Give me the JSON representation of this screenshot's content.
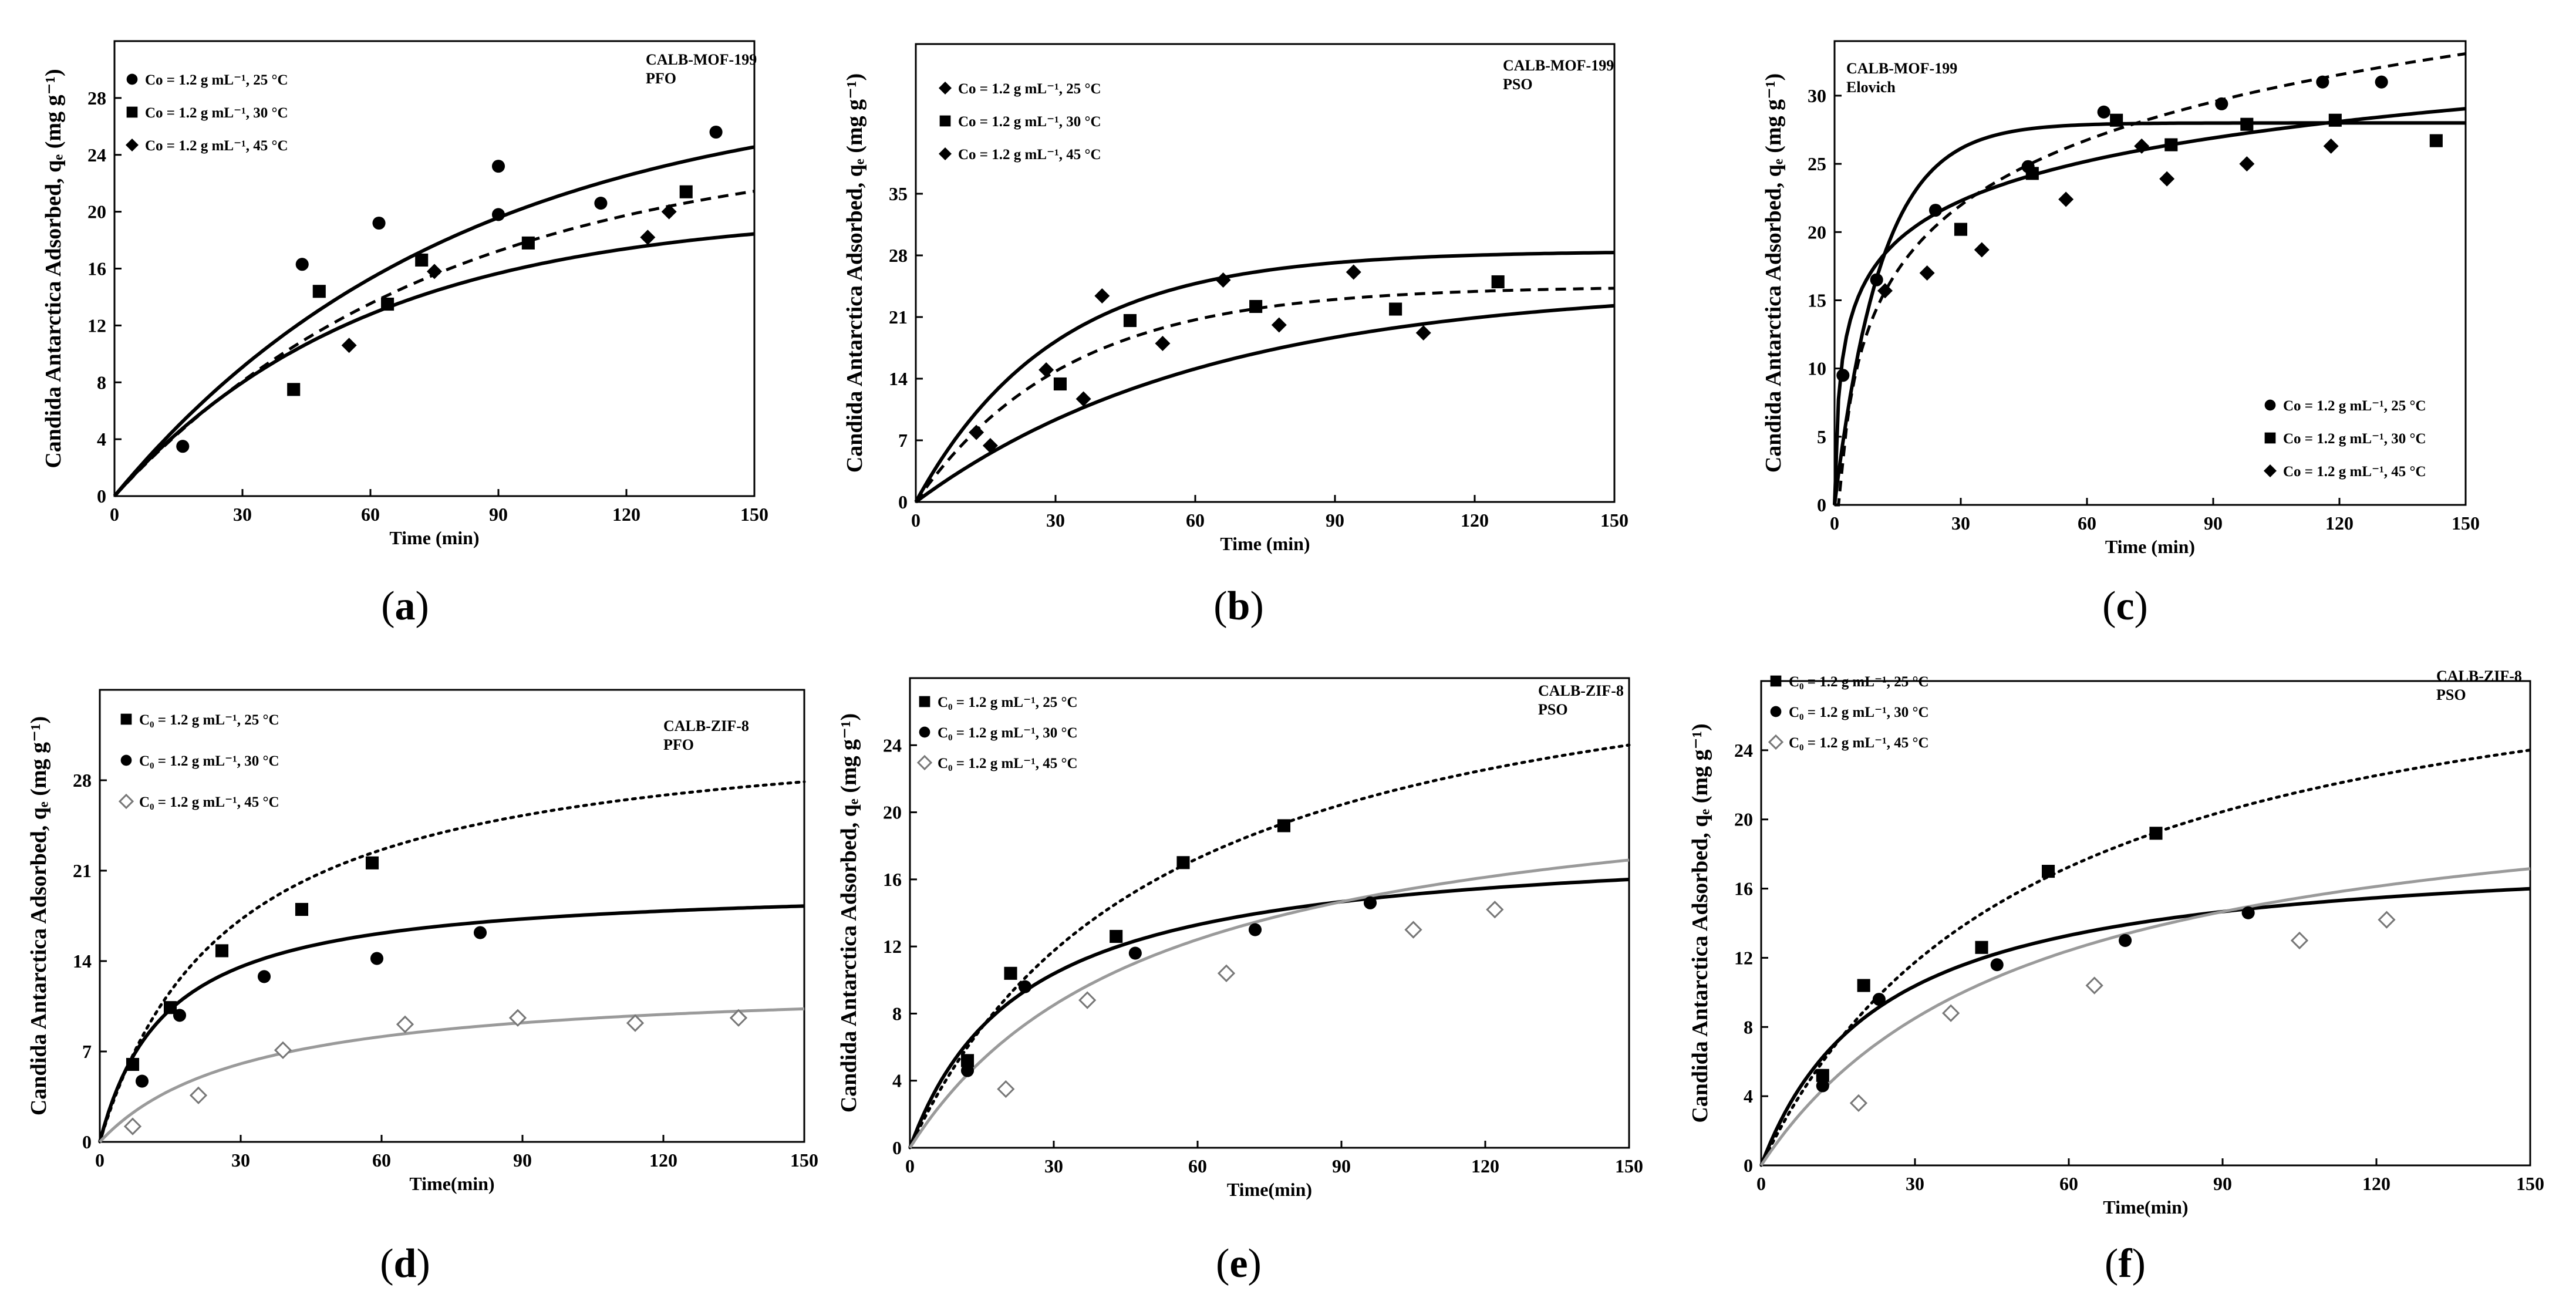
{
  "figure": {
    "panels": [
      {
        "id": "a",
        "caption_letter": "a",
        "annotation": [
          "CALB-MOF-199",
          "PFO"
        ],
        "ylabel": "Candida Antarctica Adsorbed, qₑ (mg g⁻¹)",
        "xlabel": "Time (min)"
      },
      {
        "id": "b",
        "caption_letter": "b",
        "annotation": [
          "CALB-MOF-199",
          "PSO"
        ],
        "ylabel": "Candida Antarctica Adsorbed, qₑ (mg g⁻¹)",
        "xlabel": "Time (min)"
      },
      {
        "id": "c",
        "caption_letter": "c",
        "annotation": [
          "CALB-MOF-199",
          "Elovich"
        ],
        "ylabel": "Candida Antarctica Adsorbed, qₑ (mg g⁻¹)",
        "xlabel": "Time (min)"
      },
      {
        "id": "d",
        "caption_letter": "d",
        "annotation": [
          "CALB-ZIF-8",
          "PFO"
        ],
        "ylabel": "Candida Antarctica Adsorbed, qₑ (mg g⁻¹)",
        "xlabel": "Time(min)"
      },
      {
        "id": "e",
        "caption_letter": "e",
        "annotation": [
          "CALB-ZIF-8",
          "PSO"
        ],
        "ylabel": "Candida Antarctica Adsorbed, qₑ (mg g⁻¹)",
        "xlabel": "Time(min)"
      },
      {
        "id": "f",
        "caption_letter": "f",
        "annotation": [
          "CALB-ZIF-8",
          "PSO"
        ],
        "ylabel": "Candida Antarctica Adsorbed, qₑ (mg g⁻¹)",
        "xlabel": "Time(min)"
      }
    ]
  },
  "chart_data": [
    {
      "panel": "a",
      "type": "scatter",
      "title": "CALB-MOF-199 PFO",
      "xlabel": "Time (min)",
      "ylabel": "Candida Antarctica Adsorbed, qₑ (mg g⁻¹)",
      "xlim": [
        0,
        150
      ],
      "ylim": [
        0,
        32
      ],
      "xticks": [
        0,
        30,
        60,
        90,
        120,
        150
      ],
      "yticks": [
        0,
        4,
        8,
        12,
        16,
        20,
        24,
        28
      ],
      "legend_position": "top-left",
      "series": [
        {
          "name": "Co = 1.2 g mL⁻¹, 25 °C",
          "marker": "circle",
          "line": "solid",
          "x": [
            16,
            44,
            62,
            90,
            90,
            114,
            141
          ],
          "y": [
            3.5,
            16.3,
            19.2,
            19.8,
            23.2,
            20.6,
            25.6
          ],
          "fit": {
            "model": "pfo",
            "qe": 29,
            "k": 0.0125
          }
        },
        {
          "name": "Co = 1.2 g mL⁻¹, 30 °C",
          "marker": "square",
          "line": "dashed",
          "x": [
            42,
            48,
            64,
            72,
            97,
            134
          ],
          "y": [
            7.5,
            14.4,
            13.5,
            16.6,
            17.8,
            21.4
          ],
          "fit": {
            "model": "pfo",
            "qe": 25,
            "k": 0.013
          }
        },
        {
          "name": "Co = 1.2 g mL⁻¹, 45 °C",
          "marker": "diamond",
          "line": "solid",
          "x": [
            55,
            75,
            125,
            130
          ],
          "y": [
            10.6,
            15.8,
            18.2,
            20.0
          ],
          "fit": {
            "model": "pfo",
            "qe": 20,
            "k": 0.017
          }
        }
      ]
    },
    {
      "panel": "b",
      "type": "scatter",
      "title": "CALB-MOF-199 PSO",
      "xlabel": "Time (min)",
      "ylabel": "Candida Antarctica Adsorbed, qₑ (mg g⁻¹)",
      "xlim": [
        0,
        150
      ],
      "ylim": [
        0,
        52
      ],
      "xticks": [
        0,
        30,
        60,
        90,
        120,
        150
      ],
      "yticks": [
        0,
        7,
        14,
        21,
        28,
        35
      ],
      "legend_position": "top-left",
      "series": [
        {
          "name": "Co = 1.2 g mL⁻¹, 25 °C",
          "marker": "diamond",
          "line": "solid",
          "x": [
            13,
            16,
            28,
            40,
            66,
            94
          ],
          "y": [
            7.9,
            6.4,
            15.0,
            23.4,
            25.2,
            26.1
          ],
          "fit": {
            "model": "pfo",
            "qe": 28.5,
            "k": 0.034
          }
        },
        {
          "name": "Co = 1.2 g mL⁻¹, 30 °C",
          "marker": "square",
          "line": "dashed",
          "x": [
            31,
            46,
            73,
            103,
            125
          ],
          "y": [
            13.4,
            20.6,
            22.2,
            21.9,
            25.0
          ],
          "fit": {
            "model": "pfo",
            "qe": 24.5,
            "k": 0.031
          }
        },
        {
          "name": "Co = 1.2 g mL⁻¹, 45 °C",
          "marker": "diamond",
          "line": "solid",
          "x": [
            36,
            53,
            78,
            109
          ],
          "y": [
            11.7,
            18.0,
            20.1,
            19.2
          ],
          "fit": {
            "model": "pfo",
            "qe": 24.5,
            "k": 0.016
          }
        }
      ]
    },
    {
      "panel": "c",
      "type": "scatter",
      "title": "CALB-MOF-199 Elovich",
      "xlabel": "Time (min)",
      "ylabel": "Candida Antarctica Adsorbed, qₑ (mg g⁻¹)",
      "xlim": [
        0,
        150
      ],
      "ylim": [
        0,
        34
      ],
      "xticks": [
        0,
        30,
        60,
        90,
        120,
        150
      ],
      "yticks": [
        0,
        5,
        10,
        15,
        20,
        25,
        30
      ],
      "legend_position": "bottom-right",
      "series": [
        {
          "name": "Co = 1.2 g mL⁻¹, 25 °C",
          "marker": "circle",
          "line": "dashed",
          "x": [
            2,
            10,
            24,
            46,
            64,
            92,
            116,
            130
          ],
          "y": [
            9.5,
            16.5,
            21.6,
            24.8,
            28.8,
            29.4,
            31.0,
            31.0
          ],
          "fit": {
            "model": "elovich",
            "a": -1.5,
            "b": 6.9
          }
        },
        {
          "name": "Co = 1.2 g mL⁻¹, 30 °C",
          "marker": "square",
          "line": "solid",
          "x": [
            30,
            47,
            67,
            80,
            98,
            119,
            143
          ],
          "y": [
            20.2,
            24.3,
            28.2,
            26.4,
            27.9,
            28.2,
            26.7
          ],
          "fit": {
            "model": "pfo",
            "qe": 28,
            "k": 0.09
          }
        },
        {
          "name": "Co = 1.2 g mL⁻¹, 45 °C",
          "marker": "diamond",
          "line": "solid",
          "x": [
            12,
            22,
            35,
            55,
            73,
            79,
            98,
            118
          ],
          "y": [
            15.7,
            17.0,
            18.7,
            22.4,
            26.3,
            23.9,
            25.0,
            26.3
          ],
          "fit": {
            "model": "elovich",
            "a": 8.0,
            "b": 4.2
          }
        }
      ]
    },
    {
      "panel": "d",
      "type": "scatter",
      "title": "CALB-ZIF-8 PFO",
      "xlabel": "Time(min)",
      "ylabel": "Candida Antarctica Adsorbed, qₑ (mg g⁻¹)",
      "xlim": [
        0,
        150
      ],
      "ylim": [
        0,
        35
      ],
      "xticks": [
        0,
        30,
        60,
        90,
        120,
        150
      ],
      "yticks": [
        0,
        7,
        14,
        21,
        28
      ],
      "legend_position": "top-left",
      "series": [
        {
          "name": "C₀ = 1.2 g mL⁻¹,  25 °C",
          "marker": "square",
          "line": "dotted",
          "x": [
            7,
            15,
            26,
            43,
            58
          ],
          "y": [
            6.0,
            10.4,
            14.8,
            18.0,
            21.6
          ],
          "fit": {
            "model": "pso",
            "qe": 33,
            "k": 0.0011
          }
        },
        {
          "name": "C₀ = 1.2 g mL⁻¹,  30 °C",
          "marker": "circle",
          "line": "solid",
          "x": [
            9,
            17,
            35,
            59,
            81
          ],
          "y": [
            4.7,
            9.8,
            12.8,
            14.2,
            16.2
          ],
          "fit": {
            "model": "pso",
            "qe": 20,
            "k": 0.0035
          }
        },
        {
          "name": "C₀ = 1.2 g mL⁻¹,  45 °C",
          "marker": "open-diamond",
          "line": "gray",
          "x": [
            7,
            21,
            39,
            65,
            89,
            114,
            136
          ],
          "y": [
            1.2,
            3.6,
            7.1,
            9.1,
            9.6,
            9.2,
            9.6
          ],
          "fit": {
            "model": "pso",
            "qe": 12.5,
            "k": 0.0025
          }
        }
      ]
    },
    {
      "panel": "e",
      "type": "scatter",
      "title": "CALB-ZIF-8 PSO",
      "xlabel": "Time(min)",
      "ylabel": "Candida Antarctica Adsorbed, qₑ (mg g⁻¹)",
      "xlim": [
        0,
        150
      ],
      "ylim": [
        0,
        28
      ],
      "xticks": [
        0,
        30,
        60,
        90,
        120,
        150
      ],
      "yticks": [
        0,
        4,
        8,
        12,
        16,
        20,
        24
      ],
      "legend_position": "top-left",
      "series": [
        {
          "name": "C₀ = 1.2 g mL⁻¹,  25 °C",
          "marker": "square",
          "line": "dotted",
          "x": [
            12,
            21,
            43,
            57,
            78
          ],
          "y": [
            5.2,
            10.4,
            12.6,
            17.0,
            19.2
          ],
          "fit": {
            "model": "pso",
            "qe": 32.5,
            "k": 0.00058
          }
        },
        {
          "name": "C₀ = 1.2 g mL⁻¹,  30 °C",
          "marker": "circle",
          "line": "solid",
          "x": [
            12,
            24,
            47,
            72,
            96
          ],
          "y": [
            4.6,
            9.6,
            11.6,
            13.0,
            14.6
          ],
          "fit": {
            "model": "pso",
            "qe": 18.5,
            "k": 0.0023
          }
        },
        {
          "name": "C₀ = 1.2 g mL⁻¹,  45 °C",
          "marker": "open-diamond",
          "line": "gray",
          "x": [
            20,
            37,
            66,
            105,
            122
          ],
          "y": [
            3.5,
            8.8,
            10.4,
            13.0,
            14.2
          ],
          "fit": {
            "model": "pso",
            "qe": 23,
            "k": 0.00085
          }
        }
      ]
    },
    {
      "panel": "f",
      "type": "scatter",
      "title": "CALB-ZIF-8 PSO",
      "xlabel": "Time(min)",
      "ylabel": "Candida Antarctica Adsorbed, qₑ (mg g⁻¹)",
      "xlim": [
        0,
        150
      ],
      "ylim": [
        0,
        28
      ],
      "xticks": [
        0,
        30,
        60,
        90,
        120,
        150
      ],
      "yticks": [
        0,
        4,
        8,
        12,
        16,
        20,
        24
      ],
      "legend_position": "top-left",
      "series": [
        {
          "name": "C₀ = 1.2 g mL⁻¹,  25 °C",
          "marker": "square",
          "line": "dotted",
          "x": [
            12,
            20,
            43,
            56,
            77
          ],
          "y": [
            5.2,
            10.4,
            12.6,
            17.0,
            19.2
          ],
          "fit": {
            "model": "pso",
            "qe": 32.5,
            "k": 0.00058
          }
        },
        {
          "name": "C₀ = 1.2 g mL⁻¹,  30 °C",
          "marker": "circle",
          "line": "solid",
          "x": [
            12,
            23,
            46,
            71,
            95
          ],
          "y": [
            4.6,
            9.6,
            11.6,
            13.0,
            14.6
          ],
          "fit": {
            "model": "pso",
            "qe": 18.5,
            "k": 0.0023
          }
        },
        {
          "name": "C₀ = 1.2 g mL⁻¹,  45 °C",
          "marker": "open-diamond",
          "line": "gray",
          "x": [
            19,
            37,
            65,
            105,
            122
          ],
          "y": [
            3.6,
            8.8,
            10.4,
            13.0,
            14.2
          ],
          "fit": {
            "model": "pso",
            "qe": 23,
            "k": 0.00085
          }
        }
      ]
    }
  ]
}
